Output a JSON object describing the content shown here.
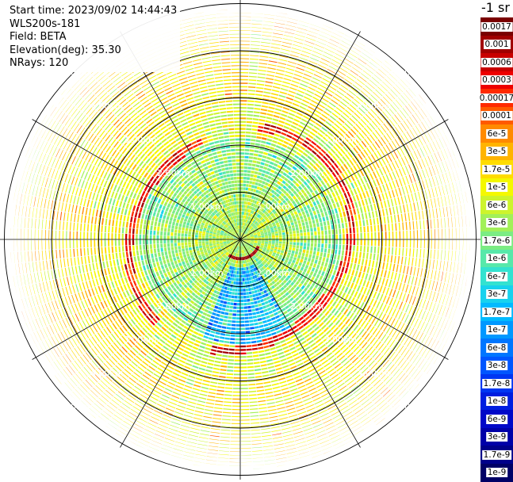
{
  "header": {
    "start_time": "Start time: 2023/09/02 14:44:43",
    "instrument": "WLS200s-181",
    "field": "Field: BETA",
    "elevation": "Elevation(deg): 35.30",
    "nrays": "NRays: 120"
  },
  "units_label": "-1 sr",
  "chart_data": {
    "type": "heatmap",
    "projection": "polar (PPI scan)",
    "field": "BETA",
    "elevation_deg": 35.3,
    "nrays": 120,
    "range_rings_km": [
      1.0,
      2.0,
      3.0,
      4.0,
      5.0
    ],
    "ring_labels": [
      "1.00km",
      "2.00km",
      "3.00km",
      "4.00km",
      "5.00km"
    ],
    "azimuth_lines_deg": [
      0,
      30,
      60,
      90,
      120,
      150,
      180,
      210,
      240,
      270,
      300,
      330
    ],
    "max_range_km": 5.0,
    "features": {
      "aerosol_layer_ring_km": 2.4,
      "near_field_intense_arc_km": 0.45
    },
    "colorbar": {
      "labels": [
        "0.0017",
        "0.001",
        "0.0006",
        "0.0003",
        "0.00017",
        "0.0001",
        "6e-5",
        "3e-5",
        "1.7e-5",
        "1e-5",
        "6e-6",
        "3e-6",
        "1.7e-6",
        "1e-6",
        "6e-7",
        "3e-7",
        "1.7e-7",
        "1e-7",
        "6e-8",
        "3e-8",
        "1.7e-8",
        "1e-8",
        "6e-9",
        "3e-9",
        "1.7e-9",
        "1e-9"
      ],
      "colors": [
        "#7a0000",
        "#a00000",
        "#c80000",
        "#ee0000",
        "#ff2a00",
        "#ff5a00",
        "#ff8a00",
        "#ffb400",
        "#ffdc00",
        "#f4f800",
        "#cdf42c",
        "#a2f059",
        "#7cec83",
        "#57e8aa",
        "#33e2d0",
        "#17d2ee",
        "#00baff",
        "#0098ff",
        "#0076ff",
        "#0056ff",
        "#0036f2",
        "#001ee0",
        "#0008c8",
        "#0000a8",
        "#00008a",
        "#000066"
      ],
      "scale": "log"
    }
  }
}
